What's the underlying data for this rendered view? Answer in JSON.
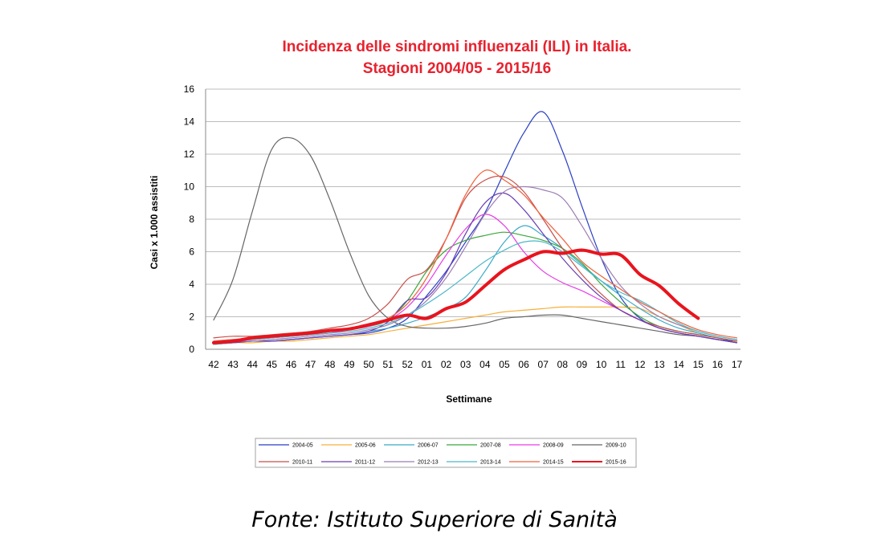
{
  "chart_data": {
    "type": "line",
    "title_lines": [
      "Incidenza delle sindromi influenzali (ILI) in Italia.",
      "Stagioni 2004/05 - 2015/16"
    ],
    "xlabel": "Settimane",
    "ylabel": "Casi x 1.000 assistiti",
    "ylim": [
      0,
      16
    ],
    "yticks": [
      0,
      2,
      4,
      6,
      8,
      10,
      12,
      14,
      16
    ],
    "grid": true,
    "legend_position": "bottom",
    "categories": [
      "42",
      "43",
      "44",
      "45",
      "46",
      "47",
      "48",
      "49",
      "50",
      "51",
      "52",
      "01",
      "02",
      "03",
      "04",
      "05",
      "06",
      "07",
      "08",
      "09",
      "10",
      "11",
      "12",
      "13",
      "14",
      "15",
      "16",
      "17"
    ],
    "series": [
      {
        "name": "2004-05",
        "color": "#2b3fc4",
        "width": 1.2,
        "values": [
          0.3,
          0.4,
          0.5,
          0.5,
          0.6,
          0.7,
          0.8,
          0.9,
          1.0,
          1.3,
          1.9,
          3.3,
          4.8,
          6.6,
          8.4,
          10.9,
          13.3,
          14.6,
          12.2,
          8.8,
          5.6,
          3.2,
          1.9,
          1.3,
          1.0,
          0.8,
          0.6,
          0.5
        ]
      },
      {
        "name": "2005-06",
        "color": "#f6b03c",
        "width": 1.2,
        "values": [
          0.3,
          0.4,
          0.4,
          0.5,
          0.5,
          0.6,
          0.7,
          0.8,
          0.9,
          1.1,
          1.3,
          1.5,
          1.7,
          1.9,
          2.1,
          2.3,
          2.4,
          2.5,
          2.6,
          2.6,
          2.6,
          2.6,
          2.5,
          2.0,
          1.5,
          1.0,
          0.7,
          0.5
        ]
      },
      {
        "name": "2006-07",
        "color": "#3ba9c8",
        "width": 1.2,
        "values": [
          0.3,
          0.4,
          0.5,
          0.5,
          0.6,
          0.7,
          0.8,
          0.9,
          1.1,
          1.3,
          1.6,
          2.0,
          2.5,
          3.2,
          4.8,
          6.6,
          7.6,
          7.0,
          6.2,
          5.2,
          4.2,
          3.3,
          2.5,
          1.8,
          1.3,
          1.0,
          0.7,
          0.5
        ]
      },
      {
        "name": "2007-08",
        "color": "#3aa83a",
        "width": 1.2,
        "values": [
          0.4,
          0.5,
          0.6,
          0.7,
          0.8,
          0.9,
          1.0,
          1.2,
          1.4,
          1.8,
          3.0,
          4.8,
          6.1,
          6.7,
          7.0,
          7.2,
          7.0,
          6.7,
          6.2,
          5.3,
          4.0,
          2.9,
          2.0,
          1.4,
          1.1,
          0.9,
          0.7,
          0.5
        ]
      },
      {
        "name": "2008-09",
        "color": "#e83ce8",
        "width": 1.2,
        "values": [
          0.4,
          0.5,
          0.6,
          0.7,
          0.8,
          0.9,
          1.0,
          1.2,
          1.4,
          1.8,
          2.6,
          4.0,
          5.8,
          7.4,
          8.3,
          7.6,
          6.0,
          4.8,
          4.1,
          3.6,
          3.0,
          2.4,
          1.8,
          1.3,
          1.0,
          0.8,
          0.6,
          0.4
        ]
      },
      {
        "name": "2009-10",
        "color": "#666666",
        "width": 1.2,
        "values": [
          1.8,
          4.3,
          8.5,
          12.3,
          13.0,
          11.9,
          9.2,
          6.0,
          3.3,
          1.9,
          1.4,
          1.3,
          1.3,
          1.4,
          1.6,
          1.9,
          2.0,
          2.1,
          2.1,
          1.9,
          1.7,
          1.5,
          1.3,
          1.1,
          0.9,
          0.8,
          0.6,
          0.4
        ]
      },
      {
        "name": "2010-11",
        "color": "#c8504a",
        "width": 1.2,
        "values": [
          0.7,
          0.8,
          0.8,
          0.9,
          1.0,
          1.1,
          1.3,
          1.5,
          1.9,
          2.8,
          4.3,
          4.9,
          6.8,
          9.3,
          10.4,
          10.6,
          9.7,
          8.0,
          6.2,
          4.6,
          3.4,
          2.4,
          1.8,
          1.4,
          1.1,
          0.9,
          0.7,
          0.5
        ]
      },
      {
        "name": "2011-12",
        "color": "#6a3cb4",
        "width": 1.2,
        "values": [
          0.4,
          0.4,
          0.5,
          0.5,
          0.6,
          0.7,
          0.8,
          0.9,
          1.1,
          1.7,
          3.0,
          3.2,
          4.7,
          7.1,
          9.0,
          9.6,
          8.6,
          7.1,
          5.6,
          4.3,
          3.2,
          2.4,
          1.8,
          1.3,
          1.0,
          0.8,
          0.6,
          0.4
        ]
      },
      {
        "name": "2012-13",
        "color": "#9c7eb4",
        "width": 1.2,
        "values": [
          0.4,
          0.5,
          0.5,
          0.6,
          0.7,
          0.8,
          0.9,
          1.0,
          1.2,
          1.5,
          2.1,
          3.0,
          4.4,
          6.3,
          8.3,
          9.7,
          10.0,
          9.8,
          9.3,
          7.6,
          5.6,
          3.9,
          2.8,
          2.0,
          1.5,
          1.1,
          0.8,
          0.6
        ]
      },
      {
        "name": "2013-14",
        "color": "#4cb8c8",
        "width": 1.2,
        "values": [
          0.5,
          0.6,
          0.6,
          0.7,
          0.8,
          0.9,
          1.0,
          1.1,
          1.3,
          1.6,
          2.1,
          2.8,
          3.6,
          4.5,
          5.4,
          6.1,
          6.6,
          6.6,
          6.0,
          5.1,
          4.2,
          3.5,
          3.0,
          2.3,
          1.6,
          1.1,
          0.8,
          0.6
        ]
      },
      {
        "name": "2014-15",
        "color": "#f0603c",
        "width": 1.2,
        "values": [
          0.5,
          0.6,
          0.7,
          0.8,
          0.9,
          1.0,
          1.1,
          1.3,
          1.5,
          1.9,
          2.8,
          4.4,
          6.8,
          9.5,
          11.0,
          10.4,
          9.5,
          8.1,
          6.8,
          5.4,
          4.5,
          3.7,
          2.9,
          2.3,
          1.7,
          1.2,
          0.9,
          0.7
        ]
      },
      {
        "name": "2015-16",
        "color": "#e8141e",
        "width": 4,
        "values": [
          0.4,
          0.5,
          0.7,
          0.8,
          0.9,
          1.0,
          1.15,
          1.25,
          1.5,
          1.8,
          2.1,
          1.9,
          2.5,
          2.9,
          3.9,
          4.9,
          5.5,
          6.0,
          5.9,
          6.1,
          5.85,
          5.8,
          4.6,
          3.9,
          2.8,
          1.9,
          null,
          null
        ]
      }
    ]
  },
  "footer": {
    "source": "Fonte: Istituto Superiore di Sanità"
  }
}
